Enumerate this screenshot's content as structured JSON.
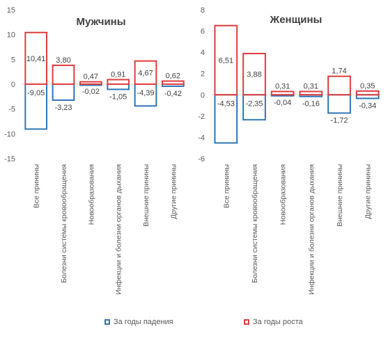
{
  "colors": {
    "fall": "#2E75B6",
    "rise": "#E03C3C",
    "zero": "#d9d9d9"
  },
  "legend": {
    "fall": "За годы падения",
    "rise": "За годы роста"
  },
  "chart_data": [
    {
      "type": "bar",
      "title": "Мужчины",
      "categories": [
        "Все принины",
        "Болезни системы кровообращения",
        "Новообразования",
        "Инфекции и болезни органов дыхания",
        "Внешние принины",
        "Другие принины"
      ],
      "series": [
        {
          "name": "За годы падения",
          "values": [
            -9.05,
            -3.23,
            -0.02,
            -1.05,
            -4.39,
            -0.42
          ],
          "labels": [
            "-9,05",
            "-3,23",
            "-0,02",
            "-1,05",
            "-4,39",
            "-0,42"
          ]
        },
        {
          "name": "За годы роста",
          "values": [
            10.41,
            3.8,
            0.47,
            0.91,
            4.67,
            0.62
          ],
          "labels": [
            "10,41",
            "3,80",
            "0,47",
            "0,91",
            "4,67",
            "0,62"
          ]
        }
      ],
      "ylim": [
        -15,
        15
      ],
      "yticks": [
        15,
        10,
        5,
        0,
        -5,
        -10,
        -15
      ],
      "grid": false,
      "legend_position": "bottom"
    },
    {
      "type": "bar",
      "title": "Женщины",
      "categories": [
        "Все принины",
        "Болезни системы кровообращения",
        "Новообразования",
        "Инфекции и болезни органов дыхания",
        "Внешние принины",
        "Другие принины"
      ],
      "series": [
        {
          "name": "За годы падения",
          "values": [
            -4.53,
            -2.35,
            -0.04,
            -0.16,
            -1.72,
            -0.34
          ],
          "labels": [
            "-4,53",
            "-2,35",
            "-0,04",
            "-0,16",
            "-1,72",
            "-0,34"
          ]
        },
        {
          "name": "За годы роста",
          "values": [
            6.51,
            3.88,
            0.31,
            0.31,
            1.74,
            0.35
          ],
          "labels": [
            "6,51",
            "3,88",
            "0,31",
            "0,31",
            "1,74",
            "0,35"
          ]
        }
      ],
      "ylim": [
        -6,
        8
      ],
      "yticks": [
        8,
        6,
        4,
        2,
        0,
        -2,
        -4,
        -6
      ],
      "grid": false,
      "legend_position": "bottom"
    }
  ]
}
